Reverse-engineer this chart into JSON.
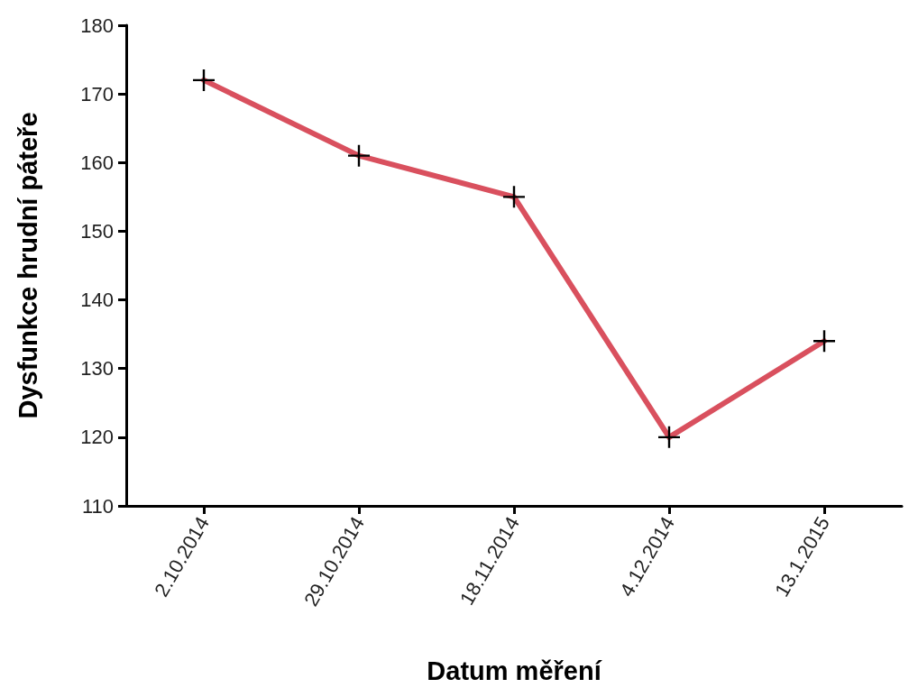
{
  "chart_data": {
    "type": "line",
    "xlabel": "Datum měření",
    "ylabel": "Dysfunkce hrudní páteře",
    "categories": [
      "2.10.2014",
      "29.10.2014",
      "18.11.2014",
      "4.12.2014",
      "13.1.2015"
    ],
    "values": [
      172,
      161,
      155,
      120,
      134
    ],
    "color": "#d9505e",
    "ylim": [
      110,
      180
    ],
    "yticks": [
      110,
      120,
      130,
      140,
      150,
      160,
      170,
      180
    ],
    "grid": false,
    "marker": "cross",
    "line_style": "solid"
  }
}
